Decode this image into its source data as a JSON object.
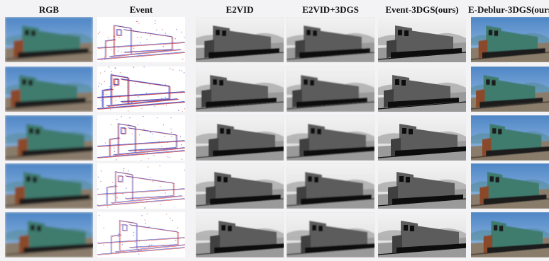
{
  "columns": [
    {
      "key": "rgb",
      "label": "RGB"
    },
    {
      "key": "event",
      "label": "Event"
    },
    {
      "key": "e2vid",
      "label": "E2VID"
    },
    {
      "key": "e2vid3dgs",
      "label": "E2VID+3DGS"
    },
    {
      "key": "event3dgs",
      "label": "Event-3DGS(ours)"
    },
    {
      "key": "edeblur",
      "label": "E-Deblur-3DGS(ours)"
    }
  ],
  "rows": 5,
  "tile_style": {
    "rgb": {
      "sky": "#4f86c6",
      "sky2": "#9cc1e6",
      "ground": "#8a7c6b",
      "train": "#3f7c6e",
      "rust": "#8a4a2a",
      "dark": "#1c1c1c"
    },
    "gray": {
      "sky": "#f2f2f2",
      "sky2": "#d9d9d9",
      "ground": "#9a9a9a",
      "train": "#5c5c5c",
      "rust": "#3f3f3f",
      "dark": "#111111"
    },
    "event": {
      "bg": "#ffffff",
      "pos": "#d22a2a",
      "neg": "#2a3fc8"
    }
  }
}
